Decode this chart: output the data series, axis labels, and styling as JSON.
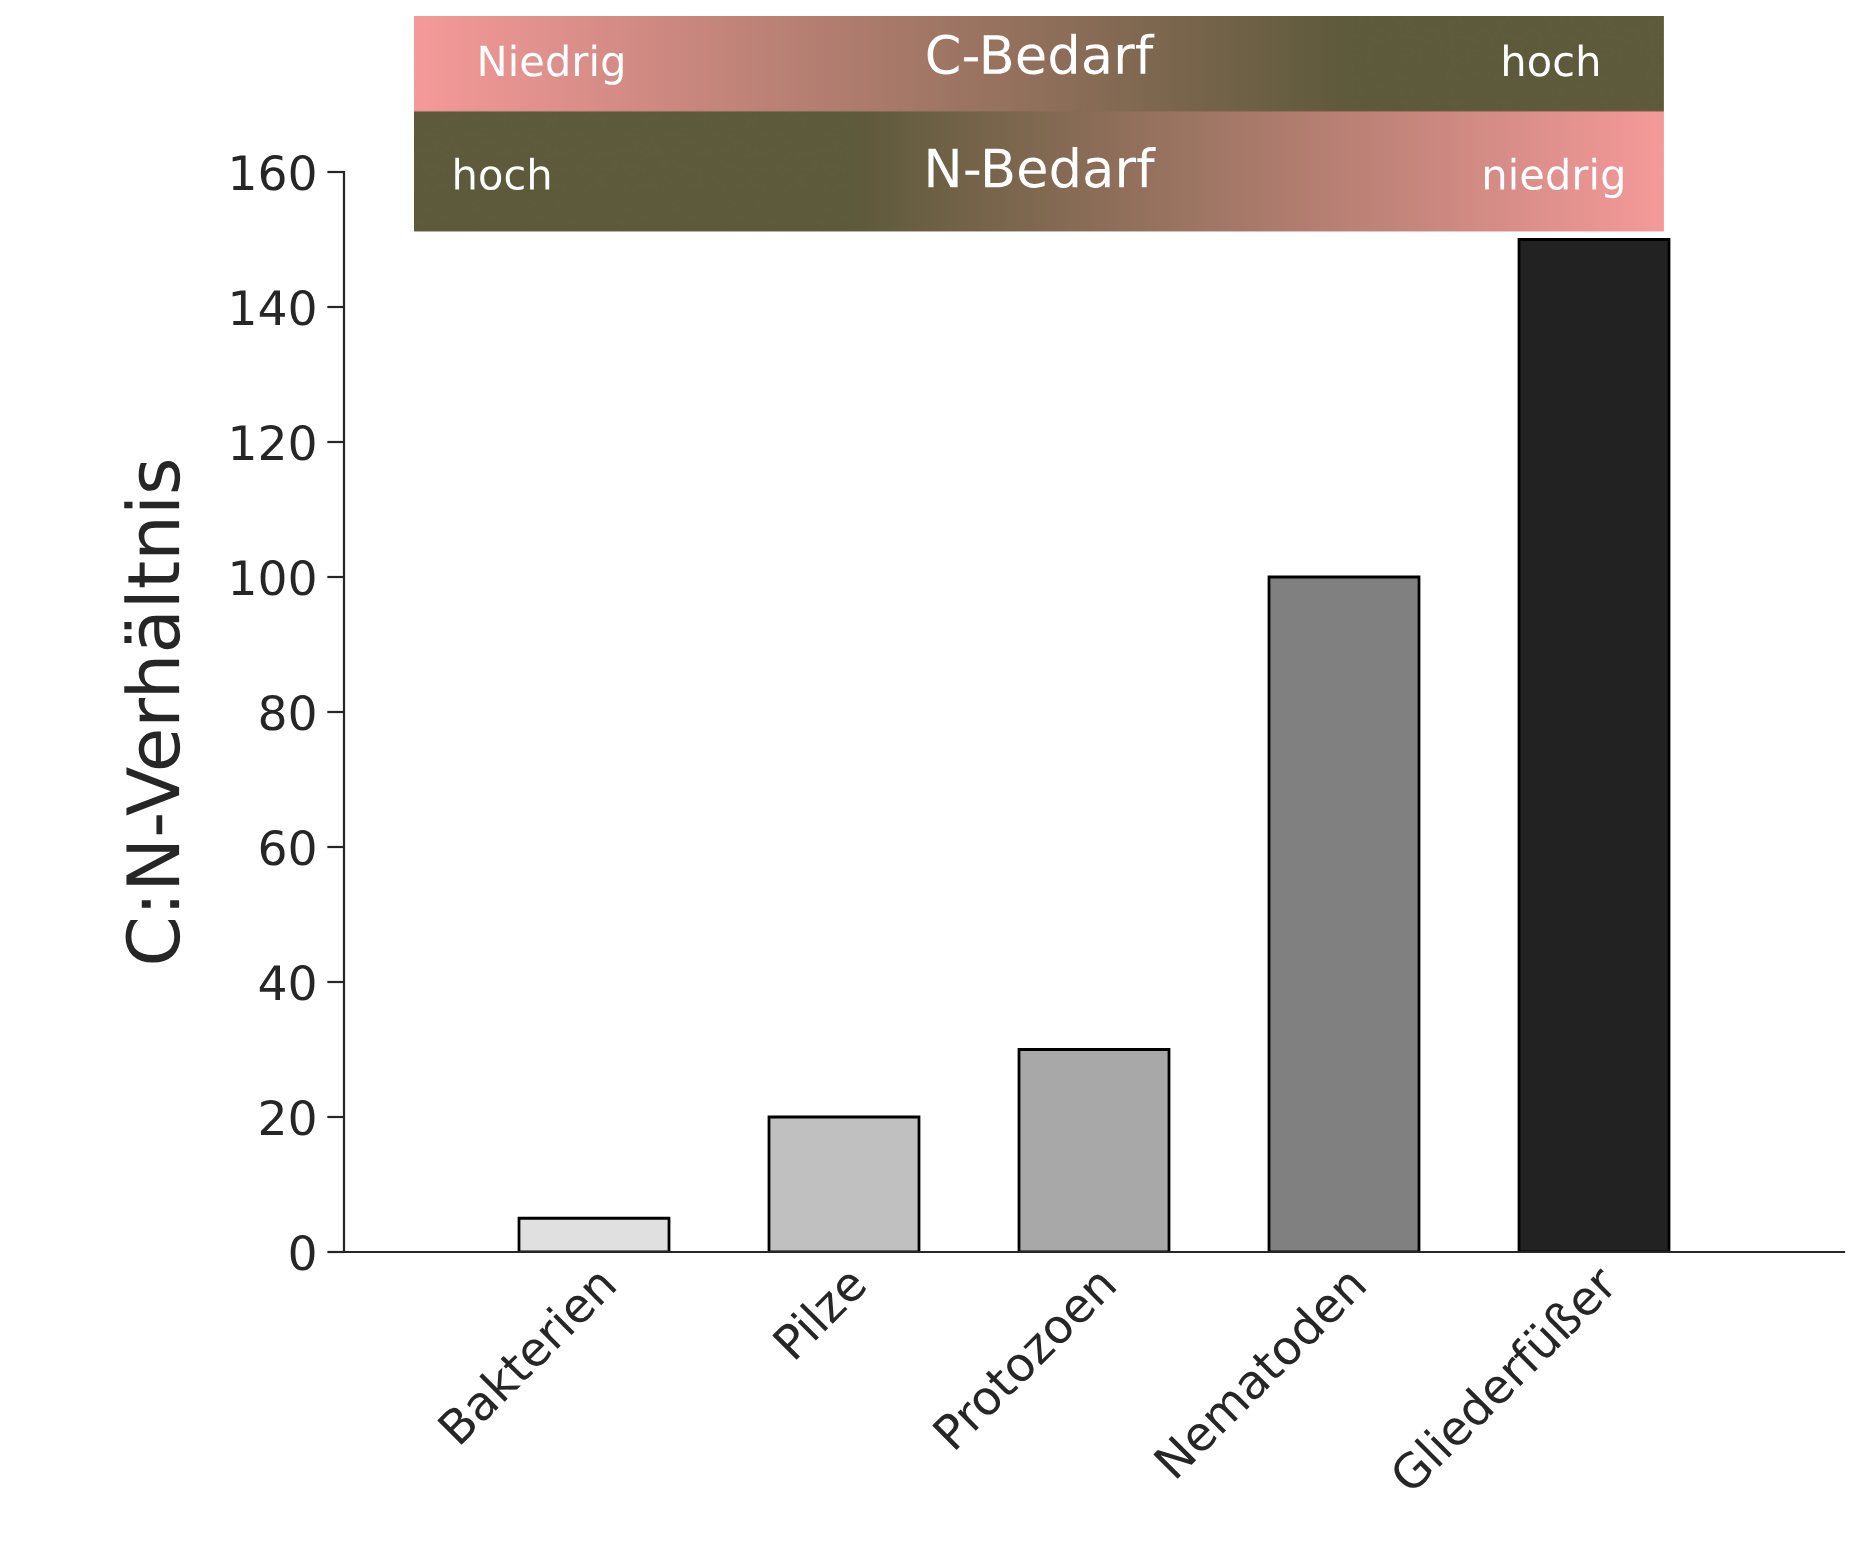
{
  "chart_data": {
    "type": "bar",
    "ylabel": "C:N-Verhältnis",
    "categories": [
      "Bakterien",
      "Pilze",
      "Protozoen",
      "Nematoden",
      "Gliederfüßer"
    ],
    "values": [
      5,
      20,
      30,
      100,
      150
    ],
    "colors": [
      "#e0e0e0",
      "#c0c0c0",
      "#a8a8a8",
      "#808080",
      "#222222"
    ],
    "ylim": [
      0,
      160
    ],
    "yticks": [
      0,
      20,
      40,
      60,
      80,
      100,
      120,
      140,
      160
    ],
    "grid": false,
    "annotations": [
      "Niedrig",
      "C-Bedarf",
      "hoch",
      "hoch",
      "N-Bedarf",
      "niedrig"
    ]
  }
}
